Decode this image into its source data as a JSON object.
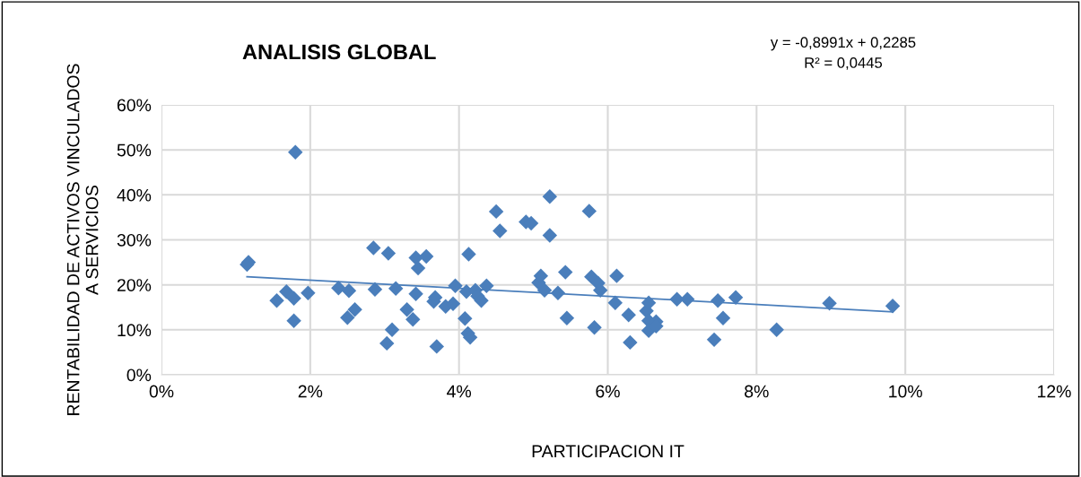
{
  "chart_data": {
    "type": "scatter",
    "title": "ANALISIS GLOBAL",
    "xlabel": "PARTICIPACION IT",
    "ylabel": "RENTABILIDAD DE ACTIVOS VINCULADOS\nA SERVICIOS",
    "annotations": [
      "y = -0,8991x + 0,2285\nR² = 0,0445"
    ],
    "series": [
      {
        "color": "#4a7ebb",
        "marker": "diamond",
        "x": [
          1.15,
          1.17,
          1.55,
          1.68,
          1.8,
          1.78,
          1.78,
          1.97,
          2.38,
          2.5,
          2.52,
          2.6,
          2.85,
          2.87,
          3.05,
          3.03,
          3.1,
          3.15,
          3.3,
          3.38,
          3.42,
          3.42,
          3.45,
          3.56,
          3.66,
          3.68,
          3.7,
          3.82,
          3.92,
          3.95,
          4.08,
          4.1,
          4.12,
          4.13,
          4.15,
          4.22,
          4.25,
          4.3,
          4.37,
          4.5,
          4.55,
          4.9,
          4.97,
          5.07,
          5.1,
          5.15,
          5.22,
          5.22,
          5.33,
          5.43,
          5.45,
          5.75,
          5.78,
          5.82,
          5.87,
          5.9,
          6.1,
          6.12,
          6.28,
          6.3,
          6.52,
          6.55,
          6.55,
          6.55,
          6.65,
          6.65,
          6.93,
          7.07,
          7.43,
          7.48,
          7.55,
          7.72,
          8.27,
          8.98,
          9.83
        ],
        "values": [
          24.5,
          25,
          16.5,
          18.5,
          49.5,
          12,
          17,
          18.2,
          19.3,
          12.7,
          18.7,
          14.5,
          28.2,
          19,
          27,
          7,
          10,
          19.2,
          14.5,
          12.3,
          26,
          18,
          23.7,
          26.3,
          16.3,
          17.2,
          6.3,
          15.2,
          15.8,
          19.8,
          12.5,
          18.5,
          9.2,
          26.8,
          8.3,
          18.8,
          17.5,
          16.5,
          19.8,
          36.3,
          32,
          34,
          33.7,
          20.5,
          22,
          18.8,
          39.6,
          31,
          18.2,
          22.8,
          12.6,
          36.4,
          21.8,
          10.5,
          20.4,
          18.8,
          16,
          22,
          13.3,
          7.2,
          14.2,
          16,
          12,
          9.8,
          11.8,
          10.8,
          16.8,
          16.8,
          7.8,
          16.5,
          12.6,
          17.2,
          10,
          15.9,
          15.3
        ]
      },
      {
        "type": "line",
        "color": "#4a7ebb",
        "marker": "none",
        "line_style": "solid",
        "x": [
          1.15,
          9.83
        ],
        "values": [
          21.8,
          14.0
        ]
      }
    ],
    "xlim": [
      0,
      12
    ],
    "ylim": [
      0,
      60
    ],
    "xticks": [
      {
        "value": 0,
        "label": "0%"
      },
      {
        "value": 2,
        "label": "2%"
      },
      {
        "value": 4,
        "label": "4%"
      },
      {
        "value": 6,
        "label": "6%"
      },
      {
        "value": 8,
        "label": "8%"
      },
      {
        "value": 10,
        "label": "10%"
      },
      {
        "value": 12,
        "label": "12%"
      }
    ],
    "yticks": [
      {
        "value": 0,
        "label": "0%"
      },
      {
        "value": 10,
        "label": "10%"
      },
      {
        "value": 20,
        "label": "20%"
      },
      {
        "value": 30,
        "label": "30%"
      },
      {
        "value": 40,
        "label": "40%"
      },
      {
        "value": 50,
        "label": "50%"
      },
      {
        "value": 60,
        "label": "60%"
      }
    ],
    "grid": true
  }
}
